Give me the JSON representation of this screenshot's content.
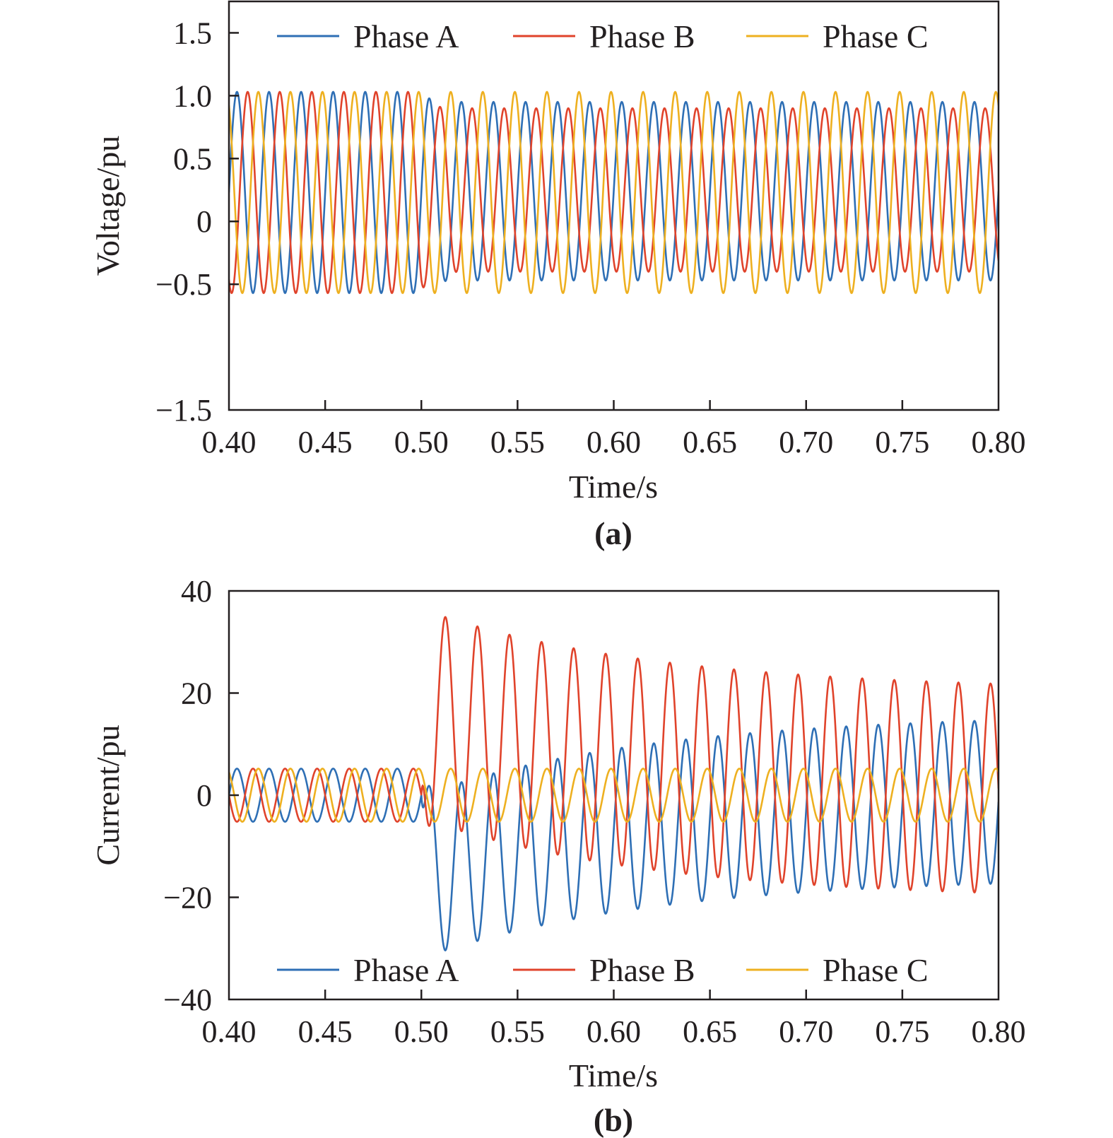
{
  "colors": {
    "phase_a": "#2e6fb5",
    "phase_b": "#e0432b",
    "phase_c": "#eeb020",
    "axis": "#231f20"
  },
  "chart_data": [
    {
      "type": "line",
      "caption": "(a)",
      "xlabel": "Time/s",
      "ylabel": "Voltage/pu",
      "xlim": [
        0.4,
        0.8
      ],
      "ylim": [
        -1.5,
        1.75
      ],
      "x_ticks": [
        "0.40",
        "0.45",
        "0.50",
        "0.55",
        "0.60",
        "0.65",
        "0.70",
        "0.75",
        "0.80"
      ],
      "y_ticks": [
        {
          "value": 1.5,
          "label": "1.5"
        },
        {
          "value": 1.0,
          "label": "1.0"
        },
        {
          "value": 0.5,
          "label": "0.5"
        },
        {
          "value": 0,
          "label": "0"
        },
        {
          "value": -0.5,
          "label": "−0.5"
        },
        {
          "value": -1.5,
          "label": "−1.5"
        }
      ],
      "grid": false,
      "legend": "top",
      "frequency_hz": 60,
      "fault_time": 0.5,
      "series": [
        {
          "name": "Phase A",
          "color_key": "phase_a",
          "pre_max": 1.03,
          "pre_min": -0.57,
          "post_max": 0.95,
          "post_min": -0.47,
          "phase_deg": 0
        },
        {
          "name": "Phase B",
          "color_key": "phase_b",
          "pre_max": 1.03,
          "pre_min": -0.57,
          "post_max": 0.9,
          "post_min": -0.4,
          "phase_deg": -120
        },
        {
          "name": "Phase C",
          "color_key": "phase_c",
          "pre_max": 1.03,
          "pre_min": -0.57,
          "post_max": 1.03,
          "post_min": -0.57,
          "phase_deg": 120
        }
      ]
    },
    {
      "type": "line",
      "caption": "(b)",
      "xlabel": "Time/s",
      "ylabel": "Current/pu",
      "xlim": [
        0.4,
        0.8
      ],
      "ylim": [
        -40,
        40
      ],
      "x_ticks": [
        "0.40",
        "0.45",
        "0.50",
        "0.55",
        "0.60",
        "0.65",
        "0.70",
        "0.75",
        "0.80"
      ],
      "y_ticks": [
        {
          "value": 40,
          "label": "40"
        },
        {
          "value": 20,
          "label": "20"
        },
        {
          "value": 0,
          "label": "0"
        },
        {
          "value": -20,
          "label": "−20"
        },
        {
          "value": -40,
          "label": "−40"
        }
      ],
      "grid": false,
      "legend": "bottom",
      "frequency_hz": 60,
      "fault_time": 0.5,
      "series": [
        {
          "name": "Phase A",
          "color_key": "phase_a",
          "pre_amplitude": 5.2,
          "post_amplitude": 16.0,
          "dc_offset": -16,
          "dc_tau": 0.12,
          "phase_deg": 0,
          "first_peak": -31,
          "final_range": [
            -17,
            15
          ]
        },
        {
          "name": "Phase B",
          "color_key": "phase_b",
          "pre_amplitude": 5.2,
          "post_amplitude": 20.5,
          "dc_offset": 16,
          "dc_tau": 0.12,
          "phase_deg": 180,
          "first_peak": 36,
          "final_range": [
            -20,
            21
          ]
        },
        {
          "name": "Phase C",
          "color_key": "phase_c",
          "pre_amplitude": 5.2,
          "post_amplitude": 5.2,
          "dc_offset": 0,
          "dc_tau": 0.12,
          "phase_deg": 120,
          "first_peak": 5.2,
          "final_range": [
            -5.2,
            5.2
          ]
        }
      ]
    }
  ]
}
